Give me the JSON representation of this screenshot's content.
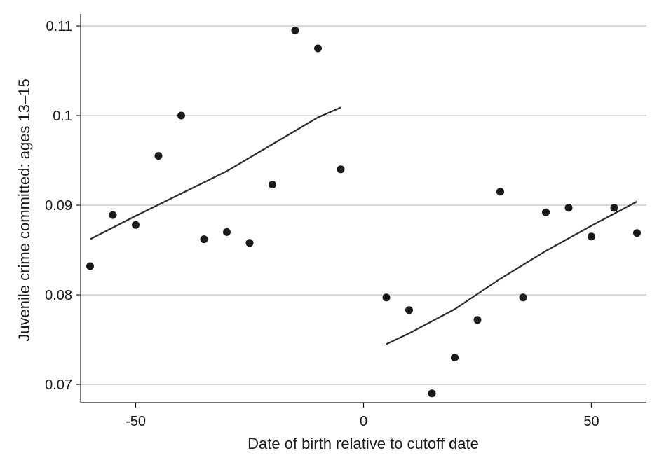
{
  "chart_data": {
    "type": "scatter",
    "xlabel": "Date of birth relative to cutoff date",
    "ylabel": "Juvenile crime committed: ages 13–15",
    "xlim": [
      -62,
      62
    ],
    "ylim": [
      0.068,
      0.112
    ],
    "x_ticks": [
      -50,
      0,
      50
    ],
    "x_tick_labels": [
      "-50",
      "0",
      "50"
    ],
    "y_ticks": [
      0.07,
      0.08,
      0.09,
      0.1,
      0.11
    ],
    "y_tick_labels": [
      "0.07",
      "0.08",
      "0.09",
      "0.1",
      "0.11"
    ],
    "grid": "horizontal",
    "series": [
      {
        "kind": "points",
        "x": [
          -60,
          -55,
          -50,
          -45,
          -40,
          -35,
          -30,
          -25,
          -20,
          -15,
          -10,
          -5,
          5,
          10,
          15,
          20,
          25,
          30,
          35,
          40,
          45,
          50,
          55,
          60
        ],
        "y": [
          0.0832,
          0.0889,
          0.0878,
          0.0955,
          0.1,
          0.0862,
          0.087,
          0.0858,
          0.0923,
          0.1095,
          0.1075,
          0.094,
          0.0797,
          0.0783,
          0.069,
          0.073,
          0.0772,
          0.0915,
          0.0797,
          0.0892,
          0.0897,
          0.0865,
          0.0897,
          0.0869
        ]
      },
      {
        "kind": "fit-left",
        "x": [
          -60,
          -50,
          -40,
          -30,
          -20,
          -10,
          -5
        ],
        "y": [
          0.0862,
          0.0888,
          0.0913,
          0.0938,
          0.0968,
          0.0998,
          0.1009
        ]
      },
      {
        "kind": "fit-right",
        "x": [
          5,
          10,
          20,
          30,
          40,
          50,
          60
        ],
        "y": [
          0.0745,
          0.0757,
          0.0784,
          0.0818,
          0.0849,
          0.0877,
          0.0904
        ]
      }
    ]
  }
}
